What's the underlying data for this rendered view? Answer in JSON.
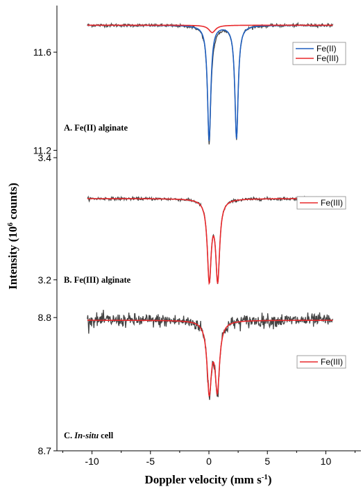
{
  "chart_data": {
    "type": "line",
    "xlabel": "Doppler velocity (mm s",
    "xlabel_sup": "-1",
    "xlabel_close": ")",
    "ylabel": "Intensity (10",
    "ylabel_sup": "6",
    "ylabel_close": " counts)",
    "xlim": [
      -13,
      13
    ],
    "x_ticks": [
      {
        "value": -10,
        "label": "-10"
      },
      {
        "value": -5,
        "label": "-5"
      },
      {
        "value": 0,
        "label": "0"
      },
      {
        "value": 5,
        "label": "5"
      },
      {
        "value": 10,
        "label": "10"
      }
    ],
    "panels": [
      {
        "label": "A. Fe(II) alginate",
        "ylim": [
          11.17,
          11.79
        ],
        "y_ticks": [
          {
            "value": 11.2,
            "label": "11.2"
          },
          {
            "value": 11.6,
            "label": "11.6"
          }
        ],
        "baseline": 11.71,
        "noise": 0.003,
        "data_color": "#444444",
        "data_lines": [
          {
            "center": 0.02,
            "hwhm": 0.17,
            "depth": 0.47
          },
          {
            "center": 2.36,
            "hwhm": 0.17,
            "depth": 0.46
          },
          {
            "center": 0.35,
            "hwhm": 0.4,
            "depth": 0.025
          }
        ],
        "series": [
          {
            "name": "Fe(II)",
            "color": "#1f5fbf",
            "baseline": 11.71,
            "lines": [
              {
                "center": 0.02,
                "hwhm": 0.17,
                "depth": 0.47
              },
              {
                "center": 2.36,
                "hwhm": 0.17,
                "depth": 0.46
              }
            ]
          },
          {
            "name": "Fe(III)",
            "color": "#e8282b",
            "baseline": 11.71,
            "lines": [
              {
                "center": 0.28,
                "hwhm": 0.35,
                "depth": 0.03
              }
            ]
          }
        ],
        "legend": [
          {
            "name": "Fe(II)",
            "color": "#1f5fbf"
          },
          {
            "name": "Fe(III)",
            "color": "#e8282b"
          }
        ]
      },
      {
        "label": "B. Fe(III) alginate",
        "ylim": [
          3.16,
          3.4
        ],
        "y_ticks": [
          {
            "value": 3.2,
            "label": "3.2"
          },
          {
            "value": 3.4,
            "label": "3.4"
          }
        ],
        "baseline": 3.333,
        "noise": 0.0012,
        "data_color": "#444444",
        "data_lines": [
          {
            "center": 0.03,
            "hwhm": 0.2,
            "depth": 0.13
          },
          {
            "center": 0.75,
            "hwhm": 0.2,
            "depth": 0.13
          }
        ],
        "series": [
          {
            "name": "Fe(III)",
            "color": "#e8282b",
            "baseline": 3.333,
            "lines": [
              {
                "center": 0.03,
                "hwhm": 0.2,
                "depth": 0.13
              },
              {
                "center": 0.75,
                "hwhm": 0.2,
                "depth": 0.13
              }
            ]
          }
        ],
        "legend": [
          {
            "name": "Fe(III)",
            "color": "#e8282b"
          }
        ]
      },
      {
        "label_prefix": "C. ",
        "label_italic": "In-situ",
        "label_suffix": " cell",
        "ylim": [
          8.7,
          8.81
        ],
        "y_ticks": [
          {
            "value": 8.7,
            "label": "8.7"
          },
          {
            "value": 8.8,
            "label": "8.8"
          }
        ],
        "baseline": 8.798,
        "noise": 0.0025,
        "data_color": "#444444",
        "data_lines": [
          {
            "center": 0.03,
            "hwhm": 0.23,
            "depth": 0.052
          },
          {
            "center": 0.72,
            "hwhm": 0.23,
            "depth": 0.05
          }
        ],
        "series": [
          {
            "name": "Fe(III)",
            "color": "#e8282b",
            "baseline": 8.798,
            "lines": [
              {
                "center": 0.03,
                "hwhm": 0.23,
                "depth": 0.052
              },
              {
                "center": 0.72,
                "hwhm": 0.23,
                "depth": 0.05
              }
            ]
          }
        ],
        "legend": [
          {
            "name": "Fe(III)",
            "color": "#e8282b"
          }
        ]
      }
    ]
  }
}
